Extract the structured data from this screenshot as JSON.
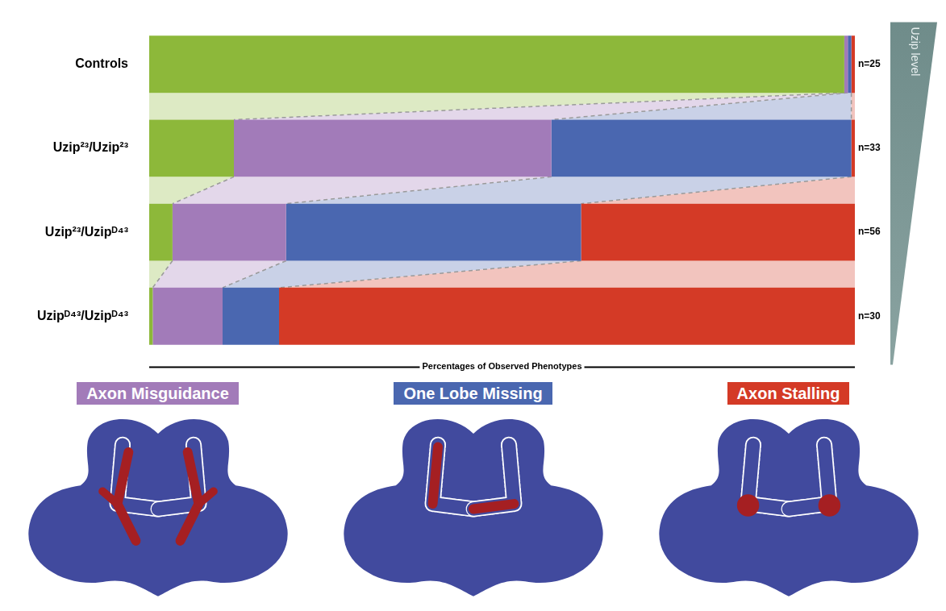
{
  "chart_data": {
    "type": "bar",
    "orientation": "horizontal",
    "stacked": true,
    "categories": [
      "Controls",
      "Uzip²³/Uzip²³",
      "Uzip²³/Uzipᴰ⁴³",
      "Uzipᴰ⁴³/Uzipᴰ⁴³"
    ],
    "series": [
      {
        "name": null,
        "color": "#8db83a",
        "values": [
          98.5,
          12,
          3.3,
          0.5
        ]
      },
      {
        "name": "Axon Misguidance",
        "color": "#a27bb9",
        "values": [
          0.5,
          45,
          16.1,
          9.9
        ]
      },
      {
        "name": "One Lobe Missing",
        "color": "#4a67b0",
        "values": [
          0.5,
          42.5,
          41.8,
          8
        ]
      },
      {
        "name": "Axon Stalling",
        "color": "#d43a26",
        "values": [
          0.5,
          0.5,
          38.8,
          81.6
        ]
      }
    ],
    "n_labels": [
      "n=25",
      "n=33",
      "n=56",
      "n=30"
    ],
    "x_label": "Percentages of Observed Phenotypes",
    "gradient_label": "Uzip level",
    "xlim": [
      0,
      100
    ],
    "tick_labels": "y",
    "grid": false,
    "legend": "bottom"
  }
}
